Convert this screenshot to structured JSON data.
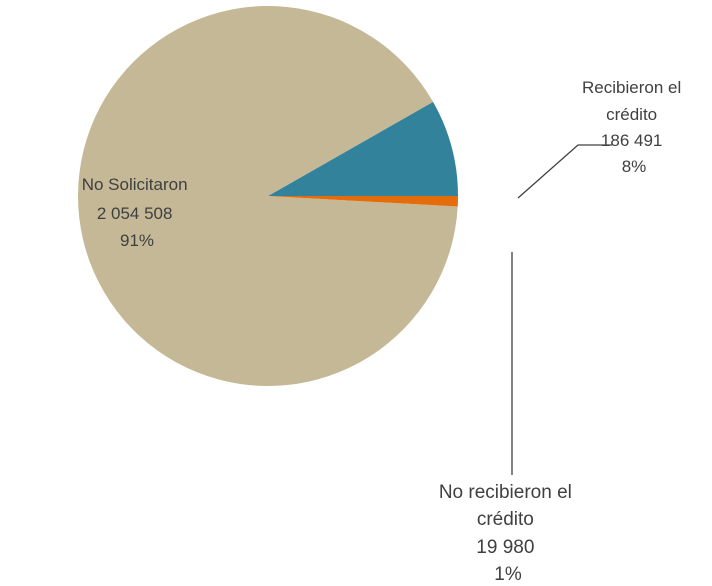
{
  "chart_data": {
    "type": "pie",
    "title": "",
    "start_angle_deg": 0,
    "direction": "counterclockwise",
    "colors": {
      "no_solicitaron": "#c4b896",
      "recibieron": "#33829b",
      "no_recibieron": "#e46c0a",
      "leader": "#404040"
    },
    "slices": [
      {
        "key": "recibieron",
        "label_lines": [
          "Recibieron el",
          "crédito",
          "186 491",
          "8%"
        ],
        "value": 186491,
        "percent": 8
      },
      {
        "key": "no_solicitaron",
        "label_lines": [
          "No Solicitaron",
          "2 054 508",
          "91%"
        ],
        "value": 2054508,
        "percent": 91
      },
      {
        "key": "no_recibieron",
        "label_lines": [
          "No recibieron  el",
          "crédito",
          "19 980",
          "1%"
        ],
        "value": 19980,
        "percent": 1
      }
    ]
  }
}
